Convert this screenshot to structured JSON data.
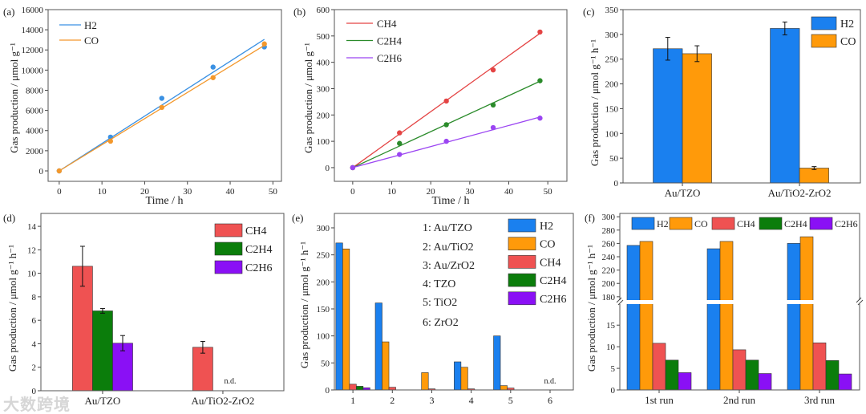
{
  "colors": {
    "H2": "#1a80ef",
    "CO": "#ff9a0a",
    "CH4": "#ef5252",
    "C2H4": "#0b7d0b",
    "C2H6": "#8a10f5",
    "H2_line": "#3b91e3",
    "CO_line": "#f3982c",
    "CH4_line": "#e44444",
    "C2H4_line": "#2b8b2b",
    "C2H6_line": "#9b45f2"
  },
  "watermark": "大数跨境",
  "chart_data": [
    {
      "id": "a",
      "panel_label": "(a)",
      "type": "scatter",
      "title": "",
      "xlabel": "Time / h",
      "ylabel": "Gas production / μmol g⁻¹",
      "xlim": [
        -2.6,
        52
      ],
      "ylim": [
        -1035,
        16000
      ],
      "xticks": [
        0,
        10,
        20,
        30,
        40,
        50
      ],
      "yticks": [
        0,
        2000,
        4000,
        6000,
        8000,
        10000,
        12000,
        14000,
        16000
      ],
      "legend": "top-left",
      "series": [
        {
          "name": "H2",
          "key": "H2",
          "x": [
            0,
            12,
            24,
            36,
            48
          ],
          "y": [
            0,
            3350,
            7200,
            10300,
            12300
          ],
          "fit": [
            0,
            13050
          ]
        },
        {
          "name": "CO",
          "key": "CO",
          "x": [
            0,
            12,
            24,
            36,
            48
          ],
          "y": [
            0,
            2950,
            6300,
            9250,
            12600
          ],
          "fit": [
            0,
            12450
          ]
        }
      ]
    },
    {
      "id": "b",
      "panel_label": "(b)",
      "type": "scatter",
      "title": "",
      "xlabel": "Time / h",
      "ylabel": "Gas production / μmol g⁻¹",
      "xlim": [
        -4.7,
        54.9
      ],
      "ylim": [
        -52,
        600
      ],
      "xticks": [
        0,
        10,
        20,
        30,
        40,
        50
      ],
      "yticks": [
        0,
        100,
        200,
        300,
        400,
        500,
        600
      ],
      "legend": "top-left",
      "series": [
        {
          "name": "CH4",
          "key": "CH4",
          "x": [
            0,
            12,
            24,
            36,
            48
          ],
          "y": [
            0,
            132,
            253,
            371,
            515
          ],
          "fit": [
            0,
            510
          ]
        },
        {
          "name": "C2H4",
          "key": "C2H4",
          "x": [
            0,
            12,
            24,
            36,
            48
          ],
          "y": [
            0,
            92,
            163,
            238,
            330
          ],
          "fit": [
            0,
            328
          ]
        },
        {
          "name": "C2H6",
          "key": "C2H6",
          "x": [
            0,
            12,
            24,
            36,
            48
          ],
          "y": [
            0,
            50,
            100,
            152,
            188
          ],
          "fit": [
            0,
            192
          ]
        }
      ]
    },
    {
      "id": "c",
      "panel_label": "(c)",
      "type": "bar",
      "title": "",
      "xlabel": "",
      "ylabel": "Gas production / μmol g⁻¹ h⁻¹",
      "categories": [
        "Au/TZO",
        "Au/TiO2-ZrO2"
      ],
      "ylim": [
        0,
        350
      ],
      "yticks": [
        0,
        50,
        100,
        150,
        200,
        250,
        300,
        350
      ],
      "legend": "top-right",
      "series": [
        {
          "name": "H2",
          "key": "H2",
          "values": [
            271,
            312
          ],
          "errors": [
            23,
            13
          ]
        },
        {
          "name": "CO",
          "key": "CO",
          "values": [
            261,
            30
          ],
          "errors": [
            16,
            3
          ]
        }
      ]
    },
    {
      "id": "d",
      "panel_label": "(d)",
      "type": "bar",
      "title": "",
      "xlabel": "",
      "ylabel": "Gas production / μmol g⁻¹ h⁻¹",
      "categories": [
        "Au/TZO",
        "Au/TiO2-ZrO2"
      ],
      "ylim": [
        0,
        15.1
      ],
      "yticks": [
        0,
        2,
        4,
        6,
        8,
        10,
        12,
        14
      ],
      "legend": "top-right",
      "series": [
        {
          "name": "CH4",
          "key": "CH4",
          "values": [
            10.6,
            3.7
          ],
          "errors": [
            1.7,
            0.5
          ]
        },
        {
          "name": "C2H4",
          "key": "C2H4",
          "values": [
            6.8,
            null
          ],
          "errors": [
            0.2,
            null
          ]
        },
        {
          "name": "C2H6",
          "key": "C2H6",
          "values": [
            4.05,
            null
          ],
          "errors": [
            0.65,
            null
          ]
        }
      ],
      "annotations": [
        {
          "category": 1,
          "text": "n.d."
        }
      ]
    },
    {
      "id": "e",
      "panel_label": "(e)",
      "type": "bar",
      "title": "",
      "xlabel": "",
      "ylabel": "Gas production / μmol g⁻¹ h⁻¹",
      "categories": [
        "1",
        "2",
        "3",
        "4",
        "5",
        "6"
      ],
      "ylim": [
        0,
        326.7
      ],
      "yticks": [
        0,
        50,
        100,
        150,
        200,
        250,
        300
      ],
      "legend": "top-right",
      "sample_key": [
        "1: Au/TZO",
        "2: Au/TiO2",
        "3: Au/ZrO2",
        "4: TZO",
        "5: TiO2",
        "6: ZrO2"
      ],
      "series": [
        {
          "name": "H2",
          "key": "H2",
          "values": [
            272,
            161,
            0,
            52,
            100,
            0
          ]
        },
        {
          "name": "CO",
          "key": "CO",
          "values": [
            261,
            89,
            32,
            42,
            8,
            0
          ]
        },
        {
          "name": "CH4",
          "key": "CH4",
          "values": [
            10.6,
            5,
            2,
            2,
            3.5,
            0
          ]
        },
        {
          "name": "C2H4",
          "key": "C2H4",
          "values": [
            6.8,
            0,
            0,
            0,
            0,
            0
          ]
        },
        {
          "name": "C2H6",
          "key": "C2H6",
          "values": [
            4.0,
            0,
            0,
            0,
            0,
            0
          ]
        }
      ],
      "annotations": [
        {
          "category": 5,
          "text": "n.d."
        }
      ]
    },
    {
      "id": "f",
      "panel_label": "(f)",
      "type": "bar",
      "title": "",
      "xlabel": "",
      "ylabel": "Gas production / μmol g⁻¹ h⁻¹",
      "categories": [
        "1st run",
        "2nd run",
        "3rd run"
      ],
      "y_break": true,
      "ylim_lower": [
        0,
        19.5
      ],
      "yticks_lower": [
        0,
        5,
        10,
        15
      ],
      "ylim_upper": [
        175,
        305
      ],
      "yticks_upper": [
        180,
        200,
        220,
        240,
        260,
        280,
        300
      ],
      "legend": "top (horizontal)",
      "series": [
        {
          "name": "H2",
          "key": "H2",
          "values": [
            257,
            252,
            260
          ]
        },
        {
          "name": "CO",
          "key": "CO",
          "values": [
            263,
            263,
            270
          ]
        },
        {
          "name": "CH4",
          "key": "CH4",
          "values": [
            10.8,
            9.3,
            10.9
          ]
        },
        {
          "name": "C2H4",
          "key": "C2H4",
          "values": [
            6.9,
            6.9,
            6.8
          ]
        },
        {
          "name": "C2H6",
          "key": "C2H6",
          "values": [
            4.0,
            3.8,
            3.7
          ]
        }
      ]
    }
  ]
}
